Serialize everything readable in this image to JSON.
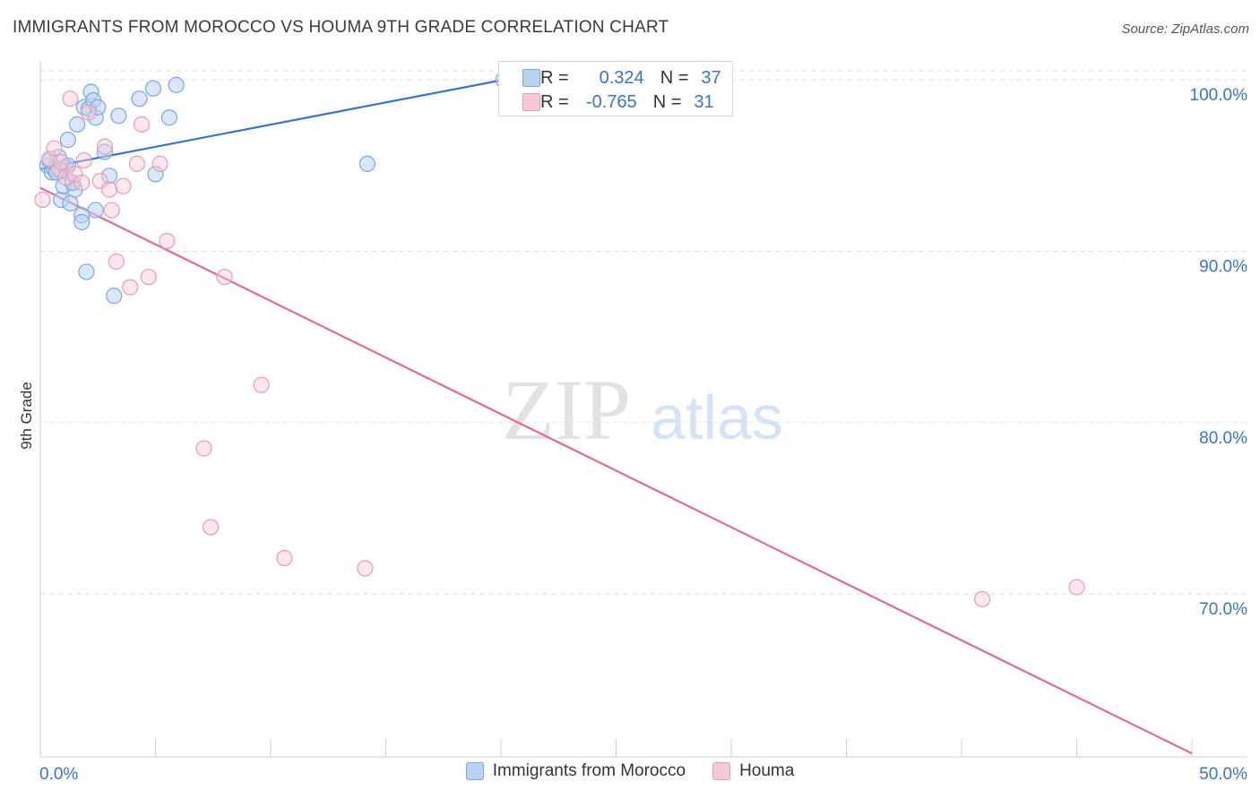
{
  "title": "IMMIGRANTS FROM MOROCCO VS HOUMA 9TH GRADE CORRELATION CHART",
  "source": "Source: ZipAtlas.com",
  "watermark": {
    "part1": "ZIP",
    "part2": "atlas"
  },
  "colors": {
    "blue": "#3a73c9",
    "blue_fill": "#b9d3f3",
    "pink": "#e06a98",
    "pink_fill": "#f7c9d8",
    "grid": "#e3e3e3"
  },
  "stats": {
    "r_label": "R =",
    "n_label": "N =",
    "blue": {
      "r": "0.324",
      "n": "37"
    },
    "pink": {
      "r": "-0.765",
      "n": "31"
    }
  },
  "legend": {
    "blue": "Immigrants from Morocco",
    "pink": "Houma"
  },
  "chart_data": {
    "type": "scatter",
    "title": "IMMIGRANTS FROM MOROCCO VS HOUMA 9TH GRADE CORRELATION CHART",
    "xlabel": "",
    "ylabel": "9th Grade",
    "xlim": [
      0,
      50
    ],
    "ylim": [
      60.5,
      101
    ],
    "x_tick_labels": [
      "0.0%",
      "50.0%"
    ],
    "y_ticks": [
      100,
      90,
      80,
      70
    ],
    "y_tick_labels": [
      "100.0%",
      "90.0%",
      "80.0%",
      "70.0%"
    ],
    "grid": true,
    "series": [
      {
        "name": "Immigrants from Morocco",
        "color": "blue",
        "points": [
          [
            0.3,
            95.0
          ],
          [
            0.5,
            94.6
          ],
          [
            0.6,
            94.8
          ],
          [
            0.8,
            95.5
          ],
          [
            0.9,
            94.7
          ],
          [
            0.9,
            93.0
          ],
          [
            1.0,
            93.8
          ],
          [
            1.1,
            94.9
          ],
          [
            1.2,
            95.0
          ],
          [
            1.2,
            96.5
          ],
          [
            1.3,
            92.8
          ],
          [
            1.5,
            93.6
          ],
          [
            1.6,
            97.4
          ],
          [
            1.8,
            92.1
          ],
          [
            1.8,
            91.7
          ],
          [
            1.9,
            98.4
          ],
          [
            2.0,
            88.8
          ],
          [
            2.1,
            98.3
          ],
          [
            2.2,
            99.3
          ],
          [
            2.3,
            98.8
          ],
          [
            2.4,
            97.8
          ],
          [
            2.4,
            92.4
          ],
          [
            2.5,
            98.4
          ],
          [
            2.8,
            95.8
          ],
          [
            3.0,
            94.4
          ],
          [
            3.2,
            87.4
          ],
          [
            3.4,
            97.9
          ],
          [
            4.3,
            98.9
          ],
          [
            4.9,
            99.5
          ],
          [
            5.0,
            94.5
          ],
          [
            5.6,
            97.8
          ],
          [
            5.9,
            99.7
          ],
          [
            14.2,
            95.1
          ],
          [
            20.1,
            100.0
          ],
          [
            0.4,
            95.3
          ],
          [
            0.7,
            94.6
          ],
          [
            1.4,
            94.0
          ]
        ],
        "trend": [
          [
            0,
            94.8
          ],
          [
            20.1,
            100.0
          ]
        ]
      },
      {
        "name": "Houma",
        "color": "pink",
        "points": [
          [
            0.1,
            93.0
          ],
          [
            0.4,
            95.4
          ],
          [
            0.6,
            96.0
          ],
          [
            0.8,
            94.8
          ],
          [
            1.1,
            94.3
          ],
          [
            1.3,
            98.9
          ],
          [
            1.5,
            94.5
          ],
          [
            1.8,
            94.0
          ],
          [
            1.9,
            95.3
          ],
          [
            2.1,
            98.1
          ],
          [
            2.6,
            94.1
          ],
          [
            2.8,
            96.1
          ],
          [
            3.0,
            93.6
          ],
          [
            3.1,
            92.4
          ],
          [
            3.3,
            89.4
          ],
          [
            3.6,
            93.8
          ],
          [
            3.9,
            87.9
          ],
          [
            4.2,
            95.1
          ],
          [
            4.4,
            97.4
          ],
          [
            4.7,
            88.5
          ],
          [
            5.2,
            95.1
          ],
          [
            5.5,
            90.6
          ],
          [
            7.1,
            78.5
          ],
          [
            7.4,
            73.9
          ],
          [
            8.0,
            88.5
          ],
          [
            9.6,
            82.2
          ],
          [
            10.6,
            72.1
          ],
          [
            14.1,
            71.5
          ],
          [
            40.9,
            69.7
          ],
          [
            45.0,
            70.4
          ],
          [
            0.9,
            95.2
          ]
        ],
        "trend": [
          [
            0,
            93.7
          ],
          [
            50,
            60.7
          ]
        ]
      }
    ]
  }
}
